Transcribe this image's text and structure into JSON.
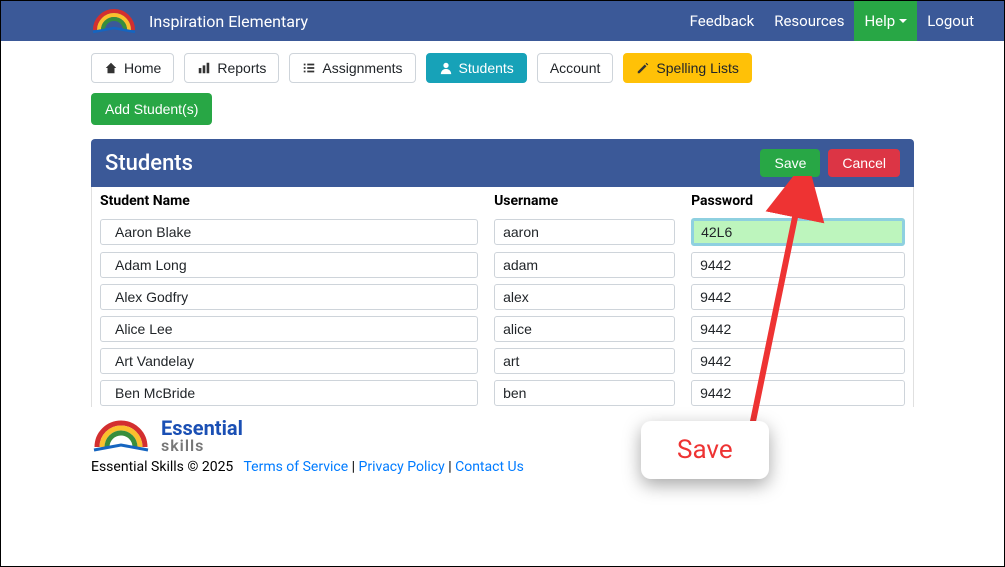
{
  "topbar": {
    "school_name": "Inspiration Elementary",
    "links": {
      "feedback": "Feedback",
      "resources": "Resources",
      "help": "Help",
      "logout": "Logout"
    }
  },
  "nav": {
    "home": "Home",
    "reports": "Reports",
    "assignments": "Assignments",
    "students": "Students",
    "account": "Account",
    "spelling": "Spelling Lists"
  },
  "add_button": "Add Student(s)",
  "panel": {
    "title": "Students",
    "save": "Save",
    "cancel": "Cancel",
    "columns": {
      "name": "Student Name",
      "username": "Username",
      "password": "Password"
    },
    "rows": [
      {
        "name": "Aaron Blake",
        "username": "aaron",
        "password": "42L6",
        "highlight": true
      },
      {
        "name": "Adam Long",
        "username": "adam",
        "password": "9442",
        "highlight": false
      },
      {
        "name": "Alex Godfry",
        "username": "alex",
        "password": "9442",
        "highlight": false
      },
      {
        "name": "Alice Lee",
        "username": "alice",
        "password": "9442",
        "highlight": false
      },
      {
        "name": "Art Vandelay",
        "username": "art",
        "password": "9442",
        "highlight": false
      },
      {
        "name": "Ben McBride",
        "username": "ben",
        "password": "9442",
        "highlight": false
      }
    ]
  },
  "footer": {
    "brand1": "Essential",
    "brand2": "skills",
    "copy": "Essential Skills © 2025",
    "tos": "Terms of Service",
    "privacy": "Privacy Policy",
    "contact": "Contact Us"
  },
  "callout": {
    "label": "Save"
  },
  "colors": {
    "topbar": "#3b5998",
    "btn_green": "#28a745",
    "btn_red": "#dc3545",
    "btn_teal": "#17a2b8",
    "btn_yellow": "#ffc107",
    "highlight_bg": "#bdf5bd",
    "link": "#007bff"
  }
}
